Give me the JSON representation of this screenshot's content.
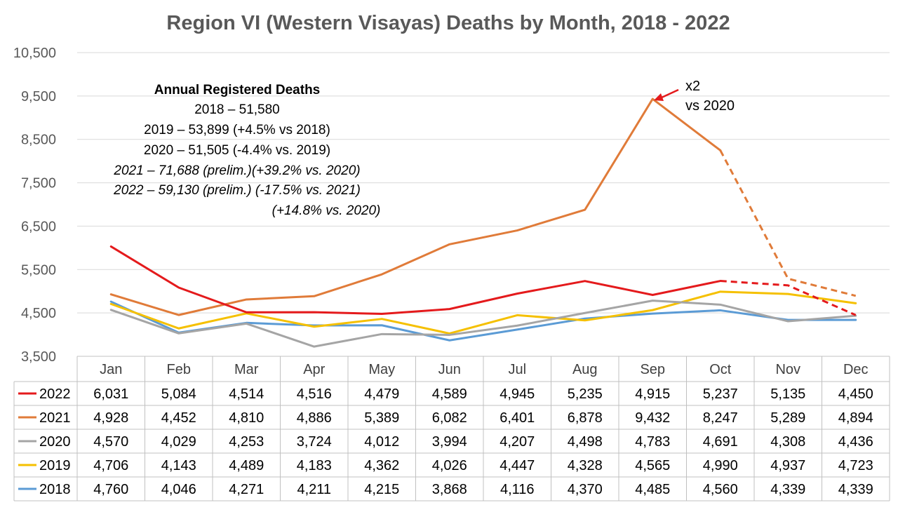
{
  "chart_data": {
    "type": "line",
    "title": "Region VI (Western Visayas) Deaths by Month, 2018 - 2022",
    "categories": [
      "Jan",
      "Feb",
      "Mar",
      "Apr",
      "May",
      "Jun",
      "Jul",
      "Aug",
      "Sep",
      "Oct",
      "Nov",
      "Dec"
    ],
    "ylim": [
      3500,
      10500
    ],
    "yticks": [
      "3,500",
      "4,500",
      "5,500",
      "6,500",
      "7,500",
      "8,500",
      "9,500",
      "10,500"
    ],
    "grid": true,
    "legend": "data-table-rows",
    "series": [
      {
        "name": "2022",
        "color": "#e41a1c",
        "dashed_from_index": 9,
        "values": [
          6031,
          5084,
          4514,
          4516,
          4479,
          4589,
          4945,
          5235,
          4915,
          5237,
          5135,
          4450
        ],
        "labels": [
          "6,031",
          "5,084",
          "4,514",
          "4,516",
          "4,479",
          "4,589",
          "4,945",
          "5,235",
          "4,915",
          "5,237",
          "5,135",
          "4,450"
        ]
      },
      {
        "name": "2021",
        "color": "#e07b39",
        "dashed_from_index": 9,
        "values": [
          4928,
          4452,
          4810,
          4886,
          5389,
          6082,
          6401,
          6878,
          9432,
          8247,
          5289,
          4894
        ],
        "labels": [
          "4,928",
          "4,452",
          "4,810",
          "4,886",
          "5,389",
          "6,082",
          "6,401",
          "6,878",
          "9,432",
          "8,247",
          "5,289",
          "4,894"
        ]
      },
      {
        "name": "2020",
        "color": "#a5a5a5",
        "values": [
          4570,
          4029,
          4253,
          3724,
          4012,
          3994,
          4207,
          4498,
          4783,
          4691,
          4308,
          4436
        ],
        "labels": [
          "4,570",
          "4,029",
          "4,253",
          "3,724",
          "4,012",
          "3,994",
          "4,207",
          "4,498",
          "4,783",
          "4,691",
          "4,308",
          "4,436"
        ]
      },
      {
        "name": "2019",
        "color": "#f5c000",
        "values": [
          4706,
          4143,
          4489,
          4183,
          4362,
          4026,
          4447,
          4328,
          4565,
          4990,
          4937,
          4723
        ],
        "labels": [
          "4,706",
          "4,143",
          "4,489",
          "4,183",
          "4,362",
          "4,026",
          "4,447",
          "4,328",
          "4,565",
          "4,990",
          "4,937",
          "4,723"
        ]
      },
      {
        "name": "2018",
        "color": "#5b9bd5",
        "values": [
          4760,
          4046,
          4271,
          4211,
          4215,
          3868,
          4116,
          4370,
          4485,
          4560,
          4339,
          4339
        ],
        "labels": [
          "4,760",
          "4,046",
          "4,271",
          "4,211",
          "4,215",
          "3,868",
          "4,116",
          "4,370",
          "4,485",
          "4,560",
          "4,339",
          "4,339"
        ]
      }
    ],
    "annotations": {
      "summary_heading": "Annual Registered Deaths",
      "summary_lines": [
        "2018 – 51,580",
        "2019 – 53,899 (+4.5% vs 2018)",
        "2020 – 51,505 (-4.4% vs. 2019)",
        "2021 – 71,688 (prelim.)(+39.2% vs. 2020)",
        "2022 – 59,130 (prelim.) (-17.5% vs. 2021)",
        "(+14.8% vs. 2020)"
      ],
      "callout_line1": "x2",
      "callout_line2": "vs 2020",
      "callout_arrow_color": "#e41a1c"
    }
  }
}
